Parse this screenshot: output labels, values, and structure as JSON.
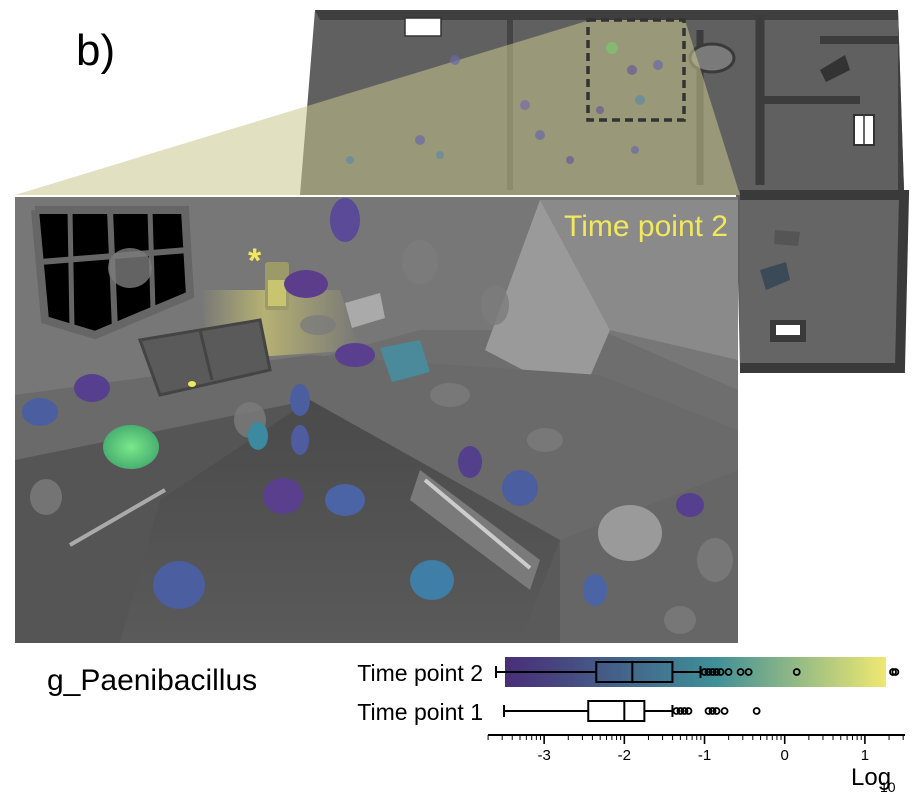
{
  "panel_label": "b)",
  "overlay_label": "Time point 2",
  "highlight_marker": "*",
  "taxon_label": "g_Paenibacillus",
  "colors": {
    "overlay_label": "#f2e85c",
    "scale_low": "#4a2d78",
    "scale_mid": "#3f8f98",
    "scale_high": "#f0e870"
  },
  "chart_data": {
    "type": "box",
    "axis": {
      "label_main": "Log",
      "label_sub": "10",
      "range": [
        -3.7,
        1.5
      ],
      "ticks": [
        -3,
        -2,
        -1,
        0,
        1
      ]
    },
    "series": [
      {
        "name": "Time point 2",
        "whisker_low": -3.6,
        "q1": -2.35,
        "median": -1.9,
        "q3": -1.4,
        "whisker_high": -1.05,
        "outliers": [
          -1.0,
          -0.95,
          -0.9,
          -0.85,
          -0.8,
          -0.7,
          -0.55,
          -0.45,
          0.15,
          1.35,
          1.38
        ],
        "colorbar": true
      },
      {
        "name": "Time point 1",
        "whisker_low": -3.5,
        "q1": -2.45,
        "median": -2.0,
        "q3": -1.75,
        "whisker_high": -1.4,
        "outliers": [
          -1.35,
          -1.3,
          -1.25,
          -1.2,
          -0.95,
          -0.9,
          -0.85,
          -0.75,
          -0.35
        ],
        "colorbar": false
      }
    ]
  }
}
